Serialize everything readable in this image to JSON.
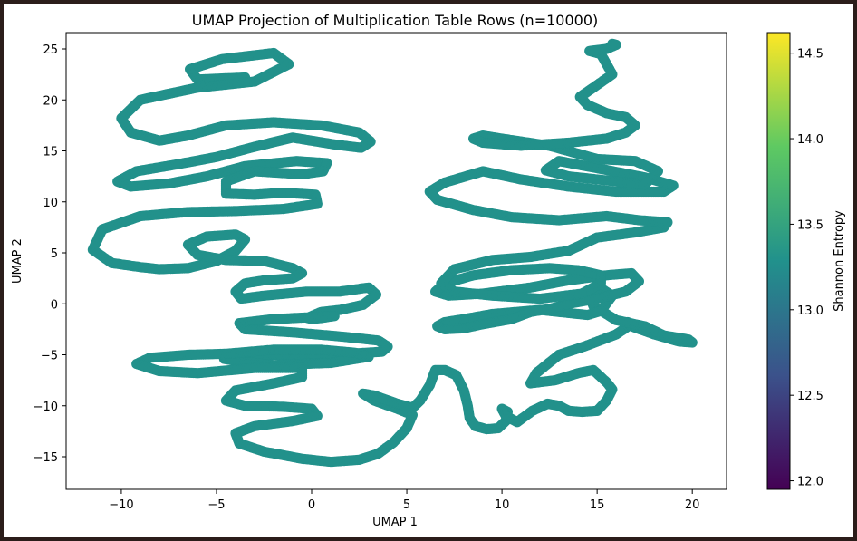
{
  "chart_data": {
    "type": "scatter",
    "title": "UMAP Projection of Multiplication Table Rows (n=10000)",
    "xlabel": "UMAP 1",
    "ylabel": "UMAP 2",
    "xlim": [
      -12.9,
      21.8
    ],
    "ylim": [
      -18.2,
      26.6
    ],
    "xticks": [
      -10,
      -5,
      0,
      5,
      10,
      15,
      20
    ],
    "yticks": [
      -15,
      -10,
      -5,
      0,
      5,
      10,
      15,
      20,
      25
    ],
    "grid": false,
    "point_color": "#22918b",
    "colorbar": {
      "label": "Shannon Entropy",
      "range": [
        11.95,
        14.62
      ],
      "ticks": [
        12.0,
        12.5,
        13.0,
        13.5,
        14.0,
        14.5
      ],
      "colormap": "viridis",
      "colormap_stops": [
        "#440154",
        "#3b528b",
        "#21918c",
        "#5ec962",
        "#fde725"
      ]
    },
    "series": [
      {
        "x": [
          -3.5,
          -6.0,
          -6.4,
          -4.7,
          -2.0,
          -1.2,
          -3.0,
          -6.0,
          -9.0,
          -10.0,
          -9.5,
          -8.0,
          -6.5,
          -4.5,
          -2.0,
          0.5,
          2.5,
          3.1,
          2.6,
          1.3,
          -1.0,
          -3.0,
          -5.0,
          -7.0,
          -9.2,
          -10.2,
          -9.5,
          -7.5,
          -5.5,
          -3.5,
          -0.8,
          0.8,
          0.6,
          -0.5,
          -3.0,
          -4.5,
          -4.5,
          -3.0,
          -1.5,
          0.2,
          0.3,
          -1.5,
          -4.0,
          -6.5,
          -9.0,
          -11.0,
          -11.5,
          -10.5,
          -9.0,
          -8.0,
          -6.5,
          -5.0,
          -4.0,
          -3.5,
          -4.0,
          -5.5,
          -6.5,
          -6.0,
          -4.5,
          -2.5,
          -1.0,
          -0.5,
          -1.0,
          -2.5,
          -3.5,
          -4.0,
          -3.7,
          -2.5,
          -0.2,
          1.5,
          3.0,
          3.4,
          2.7,
          1.5,
          0.5,
          0.0,
          -0.2,
          0.0,
          0.5,
          1.2,
          -2.0,
          -3.8,
          -3.5,
          -1.0,
          1.5,
          3.5,
          4.0,
          3.7,
          2.0,
          0.0,
          -2.0,
          -4.0,
          -4.6,
          -4.0,
          -2.0,
          1.0,
          3.0,
          2.3,
          0.5,
          -2.0,
          -4.5,
          -6.5,
          -8.5,
          -9.2,
          -8.0,
          -6.0,
          -3.0,
          -0.5,
          -0.5,
          -2.0,
          -4.0,
          -4.5,
          -3.5,
          -1.5,
          0.0,
          0.3,
          -1.0,
          -3.0,
          -4.0,
          -3.8,
          -2.5,
          -0.5,
          1.0,
          2.5,
          3.5,
          4.3,
          5.0,
          5.3,
          4.5,
          3.3,
          2.7,
          3.3,
          4.5,
          5.3,
          5.7,
          6.2,
          6.5,
          7.0,
          7.6,
          8.0,
          8.2,
          8.3,
          8.6,
          9.2,
          9.8,
          10.2,
          10.3,
          10.0,
          10.2,
          10.8,
          11.6,
          12.4,
          13.0,
          13.5,
          14.2,
          15.0,
          15.5,
          15.8,
          15.5,
          14.8,
          14.0,
          12.8,
          11.5,
          11.8,
          13.0,
          14.3,
          16.0,
          16.8,
          16.6,
          16.8,
          18.0,
          19.3,
          20.0,
          19.8,
          18.5,
          17.5,
          16.0,
          14.8,
          14.6,
          15.3,
          15.8,
          15.2,
          14.5,
          12.0,
          9.5,
          8.0,
          7.0,
          6.6,
          7.0,
          8.0,
          9.0,
          10.5,
          11.5,
          12.5,
          13.5,
          15.0,
          16.5,
          17.2,
          16.8,
          15.5,
          13.5,
          11.5,
          9.0,
          7.2,
          6.5,
          7.0,
          8.5,
          10.5,
          12.5,
          14.0,
          15.2,
          15.2,
          14.2,
          12.0,
          9.5,
          7.5,
          6.8,
          7.5,
          9.5,
          11.5,
          13.5,
          15.0,
          17.0,
          18.5,
          18.7,
          17.2,
          15.5,
          13.0,
          10.5,
          8.5,
          6.6,
          6.2,
          7.0,
          9.0,
          11.0,
          13.5,
          16.0,
          18.5,
          19.0,
          17.5,
          15.0,
          13.0,
          12.3,
          13.5,
          15.5,
          17.5,
          18.2,
          17.0,
          15.0,
          12.5,
          10.0,
          9.0,
          8.5,
          9.0,
          11.0,
          13.5,
          15.5,
          16.5,
          17.0,
          16.5,
          15.5,
          14.5,
          14.1,
          14.8,
          15.8,
          15.2,
          14.6,
          15.5,
          16.0,
          15.8
        ],
        "y": [
          22.2,
          22.0,
          23.0,
          24.0,
          24.6,
          23.5,
          21.8,
          21.2,
          20.0,
          18.2,
          16.8,
          16.0,
          16.5,
          17.5,
          17.8,
          17.5,
          16.8,
          15.9,
          15.3,
          15.6,
          16.3,
          15.4,
          14.4,
          13.7,
          13.0,
          12.0,
          11.5,
          11.8,
          12.5,
          13.5,
          14.0,
          13.8,
          13.0,
          12.7,
          13.0,
          12.0,
          10.8,
          10.7,
          10.9,
          10.7,
          9.8,
          9.3,
          9.1,
          9.0,
          8.6,
          7.3,
          5.3,
          4.0,
          3.6,
          3.4,
          3.5,
          4.2,
          5.2,
          6.3,
          6.8,
          6.6,
          5.8,
          4.8,
          4.3,
          4.2,
          3.5,
          3.0,
          2.5,
          2.3,
          2.0,
          1.2,
          0.5,
          0.8,
          1.2,
          1.2,
          1.6,
          0.9,
          -0.1,
          -0.6,
          -0.8,
          -1.2,
          -1.4,
          -1.5,
          -1.4,
          -1.2,
          -1.5,
          -1.9,
          -2.5,
          -2.8,
          -3.2,
          -3.6,
          -4.2,
          -4.7,
          -4.9,
          -5.1,
          -5.0,
          -5.2,
          -5.4,
          -5.6,
          -6.0,
          -5.8,
          -5.2,
          -4.8,
          -4.5,
          -4.5,
          -4.9,
          -5.0,
          -5.3,
          -5.9,
          -6.6,
          -6.8,
          -6.3,
          -6.3,
          -7.2,
          -7.8,
          -8.5,
          -9.5,
          -10.0,
          -10.1,
          -10.3,
          -11.0,
          -11.5,
          -12.0,
          -12.7,
          -13.7,
          -14.5,
          -15.2,
          -15.5,
          -15.3,
          -14.7,
          -13.6,
          -12.2,
          -10.9,
          -10.3,
          -9.5,
          -8.8,
          -9.0,
          -9.8,
          -10.2,
          -9.5,
          -8.0,
          -6.5,
          -6.5,
          -7.0,
          -8.5,
          -10.0,
          -11.2,
          -12.0,
          -12.3,
          -12.2,
          -11.5,
          -10.6,
          -10.3,
          -11.0,
          -11.6,
          -10.5,
          -9.8,
          -10.0,
          -10.5,
          -10.6,
          -10.5,
          -9.5,
          -8.4,
          -7.7,
          -6.5,
          -6.8,
          -7.5,
          -7.8,
          -6.8,
          -5.0,
          -4.2,
          -3.0,
          -2.0,
          -1.8,
          -2.2,
          -3.0,
          -3.7,
          -3.8,
          -3.5,
          -3.1,
          -2.2,
          -1.6,
          -0.2,
          0.8,
          1.4,
          0.8,
          -0.7,
          -1.1,
          -0.6,
          -1.0,
          -1.5,
          -1.8,
          -2.2,
          -2.5,
          -2.4,
          -2.0,
          -1.5,
          -0.8,
          -0.5,
          0.0,
          0.5,
          1.2,
          2.2,
          3.0,
          2.8,
          2.3,
          1.6,
          1.0,
          0.8,
          1.2,
          2.0,
          2.8,
          3.3,
          3.5,
          3.3,
          2.8,
          2.0,
          1.0,
          0.5,
          0.8,
          1.2,
          2.0,
          3.4,
          4.3,
          4.6,
          5.2,
          6.5,
          7.0,
          7.5,
          8.0,
          8.2,
          8.6,
          8.2,
          8.5,
          9.2,
          10.2,
          11.0,
          11.9,
          13.0,
          12.2,
          11.5,
          11.0,
          11.0,
          11.6,
          12.4,
          13.3,
          14.0,
          13.1,
          12.5,
          12.1,
          11.7,
          13.0,
          14.0,
          14.2,
          15.5,
          16.2,
          16.5,
          16.2,
          15.8,
          15.5,
          15.8,
          16.2,
          16.8,
          17.5,
          18.3,
          18.7,
          19.5,
          20.3,
          21.2,
          22.5,
          24.5,
          24.8,
          25.0,
          25.4,
          25.5
        ],
        "color_value": 13.3
      }
    ]
  }
}
